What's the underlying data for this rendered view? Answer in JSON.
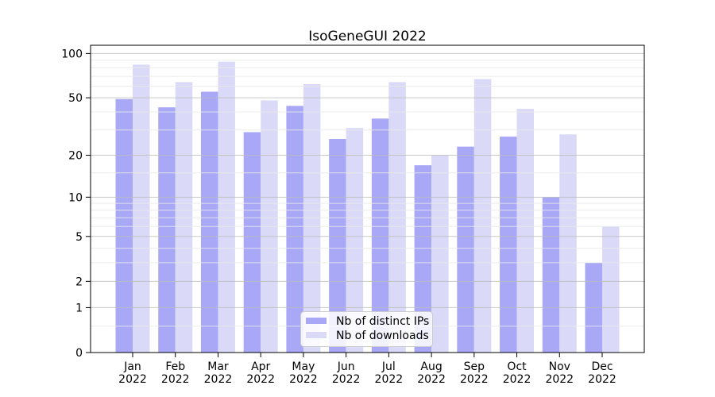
{
  "chart_data": {
    "type": "bar",
    "title": "IsoGeneGUI 2022",
    "x": {
      "months": [
        "Jan",
        "Feb",
        "Mar",
        "Apr",
        "May",
        "Jun",
        "Jul",
        "Aug",
        "Sep",
        "Oct",
        "Nov",
        "Dec"
      ],
      "year": "2022"
    },
    "series": [
      {
        "name": "Nb of distinct IPs",
        "color": "#a8a8f7",
        "values": [
          49,
          43,
          55,
          29,
          44,
          26,
          36,
          17,
          23,
          27,
          10,
          3
        ]
      },
      {
        "name": "Nb of downloads",
        "color": "#dadaf8",
        "values": [
          84,
          64,
          88,
          48,
          62,
          31,
          64,
          20,
          67,
          42,
          28,
          6
        ]
      }
    ],
    "y_axis": {
      "scale": "log1p",
      "major_tick_values": [
        0,
        1,
        2,
        5,
        10,
        20,
        50,
        100
      ],
      "major_tick_labels": [
        "0",
        "1",
        "2",
        "5",
        "10",
        "20",
        "50",
        "100"
      ],
      "minor_tick_values": [
        0.5,
        3,
        4,
        6,
        7,
        8,
        9,
        15,
        30,
        40,
        60,
        70,
        80,
        90
      ],
      "ylim_top": 113.7
    },
    "grid": true,
    "legend": {
      "position": "lower center"
    },
    "colors": {
      "major_grid": "#bcbcbc",
      "minor_grid": "#e9e9e9",
      "axis": "#000000",
      "legend_border": "#cccccc"
    }
  }
}
